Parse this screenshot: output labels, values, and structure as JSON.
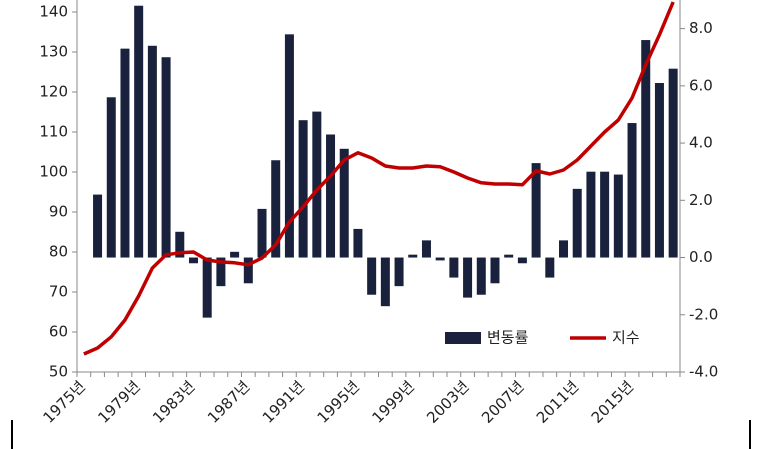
{
  "chart_data": {
    "type": "bar_line",
    "categories": [
      "1975년",
      null,
      null,
      null,
      "1979년",
      null,
      null,
      null,
      "1983년",
      null,
      null,
      null,
      "1987년",
      null,
      null,
      null,
      "1991년",
      null,
      null,
      null,
      "1995년",
      null,
      null,
      null,
      "1999년",
      null,
      null,
      null,
      "2003년",
      null,
      null,
      null,
      "2007년",
      null,
      null,
      null,
      "2011년",
      null,
      null,
      null,
      "2015년",
      null,
      null,
      null
    ],
    "series": [
      {
        "name": "변동률",
        "type": "bar",
        "axis": "y2",
        "color": "#19213d",
        "values": [
          null,
          2.2,
          5.6,
          7.3,
          8.8,
          7.4,
          7.0,
          0.9,
          -0.2,
          -2.1,
          -1.0,
          0.2,
          -0.9,
          1.7,
          3.4,
          7.8,
          4.8,
          5.1,
          4.3,
          3.8,
          1.0,
          -1.3,
          -1.7,
          -1.0,
          0.1,
          0.6,
          -0.1,
          -0.7,
          -1.4,
          -1.3,
          -0.9,
          0.1,
          -0.2,
          3.3,
          -0.7,
          0.6,
          2.4,
          3.0,
          3.0,
          2.9,
          4.7,
          7.6,
          6.1,
          6.6
        ]
      },
      {
        "name": "지수",
        "type": "line",
        "color": "#c00000",
        "values": [
          54.5,
          56,
          58.8,
          63,
          69,
          76,
          79.3,
          79.8,
          80,
          78,
          77.5,
          77.3,
          76.8,
          78.5,
          81.8,
          87.5,
          91.3,
          95.5,
          99,
          103,
          104.8,
          103.5,
          101.5,
          101,
          101,
          101.5,
          101.3,
          100,
          98.5,
          97.3,
          97,
          97,
          96.8,
          100.3,
          99.5,
          100.5,
          103,
          106.5,
          110,
          113,
          118.5,
          126.8,
          134.3,
          142.5
        ]
      }
    ],
    "ylim": [
      50,
      143
    ],
    "yticks": [
      50,
      60,
      70,
      80,
      90,
      100,
      110,
      120,
      130,
      140
    ],
    "y2lim": [
      -4,
      9
    ],
    "y2ticks": [
      {
        "value": -4,
        "label": "-4.0"
      },
      {
        "value": -2,
        "label": "-2.0"
      },
      {
        "value": 0,
        "label": "0.0"
      },
      {
        "value": 2,
        "label": "2.0"
      },
      {
        "value": 4,
        "label": "4.0"
      },
      {
        "value": 6,
        "label": "6.0"
      },
      {
        "value": 8,
        "label": "8.0"
      }
    ],
    "legend": "lower-right"
  }
}
